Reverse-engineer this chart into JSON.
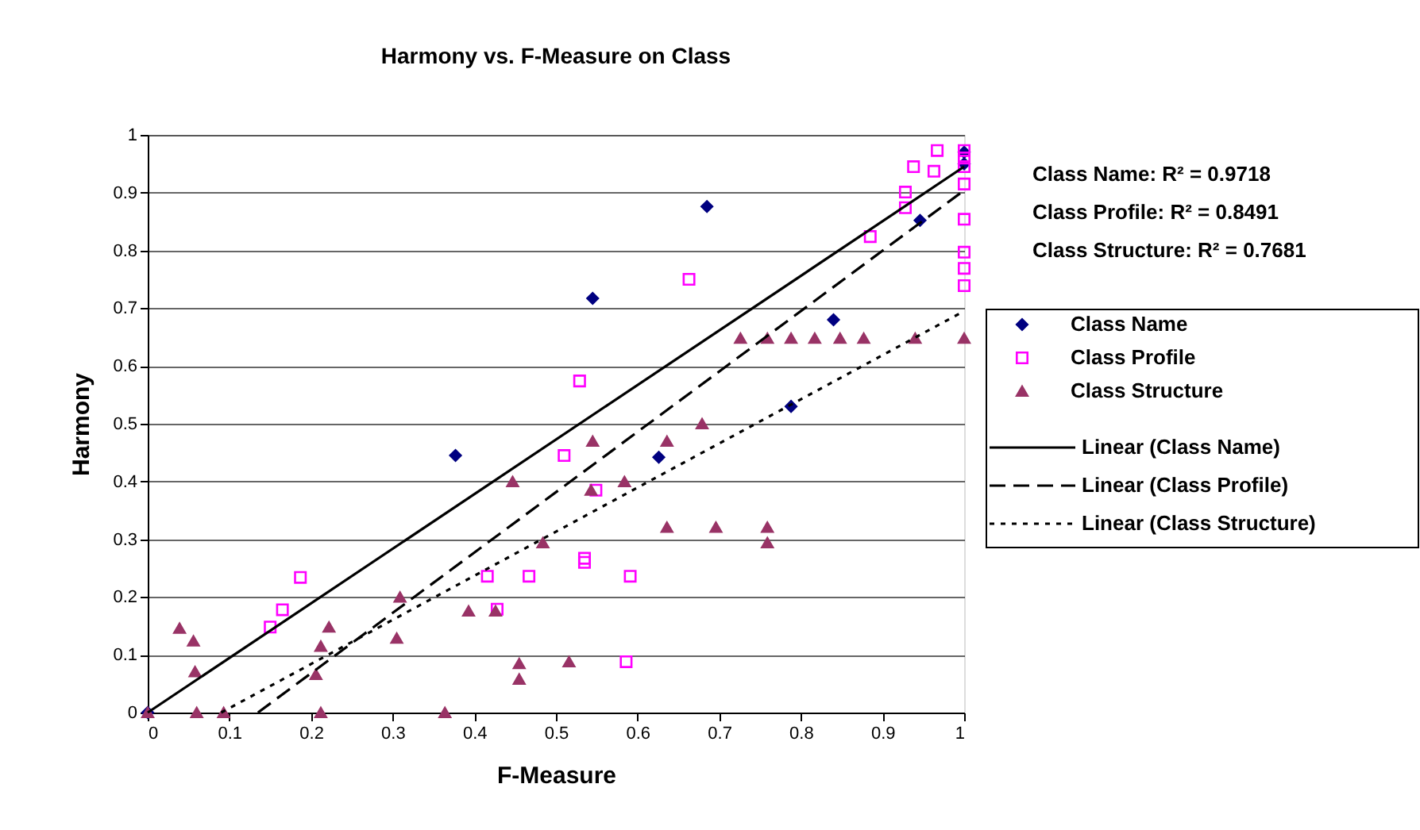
{
  "chart_data": {
    "type": "scatter",
    "title": "Harmony vs. F-Measure on Class",
    "xlabel": "F-Measure",
    "ylabel": "Harmony",
    "xlim": [
      0,
      1
    ],
    "ylim": [
      0,
      1
    ],
    "xticks": [
      0,
      0.1,
      0.2,
      0.3,
      0.4,
      0.5,
      0.6,
      0.7,
      0.8,
      0.9,
      1
    ],
    "yticks": [
      0,
      0.1,
      0.2,
      0.3,
      0.4,
      0.5,
      0.6,
      0.7,
      0.8,
      0.9,
      1
    ],
    "grid": "y",
    "legend": "right",
    "annotations": [
      "Class Name:  R² = 0.9718",
      "Class Profile:  R² = 0.8491",
      "Class Structure: R² = 0.7681"
    ],
    "series": [
      {
        "name": "Class Name",
        "type": "scatter",
        "marker": "diamond",
        "color": "#000080",
        "x": [
          0,
          0.377,
          0.545,
          0.626,
          0.685,
          0.788,
          0.84,
          0.946,
          1,
          1
        ],
        "values": [
          0,
          0.445,
          0.717,
          0.442,
          0.876,
          0.53,
          0.68,
          0.852,
          0.95,
          0.97
        ]
      },
      {
        "name": "Class Profile",
        "type": "scatter",
        "marker": "square",
        "color": "#ff00ff",
        "x": [
          0.15,
          0.165,
          0.187,
          0.416,
          0.428,
          0.467,
          0.51,
          0.529,
          0.535,
          0.535,
          0.549,
          0.586,
          0.591,
          0.663,
          0.885,
          0.928,
          0.928,
          0.938,
          0.963,
          0.967,
          1,
          1,
          1,
          1,
          1,
          1,
          1,
          1
        ],
        "values": [
          0.148,
          0.178,
          0.234,
          0.236,
          0.179,
          0.236,
          0.445,
          0.574,
          0.267,
          0.26,
          0.385,
          0.088,
          0.236,
          0.75,
          0.824,
          0.901,
          0.874,
          0.945,
          0.937,
          0.973,
          0.973,
          0.96,
          0.945,
          0.915,
          0.854,
          0.797,
          0.769,
          0.739
        ]
      },
      {
        "name": "Class Structure",
        "type": "scatter",
        "marker": "triangle",
        "color": "#993366",
        "x": [
          0,
          0.039,
          0.056,
          0.058,
          0.06,
          0.093,
          0.206,
          0.212,
          0.212,
          0.222,
          0.305,
          0.309,
          0.364,
          0.393,
          0.426,
          0.447,
          0.455,
          0.455,
          0.484,
          0.516,
          0.543,
          0.545,
          0.584,
          0.636,
          0.636,
          0.679,
          0.696,
          0.726,
          0.759,
          0.759,
          0.759,
          0.788,
          0.817,
          0.848,
          0.877,
          0.94,
          1
        ],
        "values": [
          0,
          0.146,
          0.124,
          0.071,
          0,
          0,
          0.066,
          0.115,
          0,
          0.148,
          0.129,
          0.2,
          0,
          0.176,
          0.176,
          0.4,
          0.085,
          0.058,
          0.294,
          0.088,
          0.385,
          0.47,
          0.4,
          0.47,
          0.321,
          0.5,
          0.321,
          0.648,
          0.648,
          0.321,
          0.294,
          0.648,
          0.648,
          0.648,
          0.648,
          0.648,
          0.648
        ]
      },
      {
        "name": "Linear (Class Name)",
        "type": "line",
        "line_style": "solid",
        "color": "#000000",
        "x": [
          0,
          1
        ],
        "values": [
          0,
          0.945
        ]
      },
      {
        "name": "Linear (Class Profile)",
        "type": "line",
        "line_style": "dashed",
        "color": "#000000",
        "x": [
          0.135,
          1
        ],
        "values": [
          0,
          0.904
        ]
      },
      {
        "name": "Linear (Class Structure)",
        "type": "line",
        "line_style": "dotted",
        "color": "#000000",
        "x": [
          0.09,
          1
        ],
        "values": [
          0,
          0.695
        ]
      }
    ]
  }
}
